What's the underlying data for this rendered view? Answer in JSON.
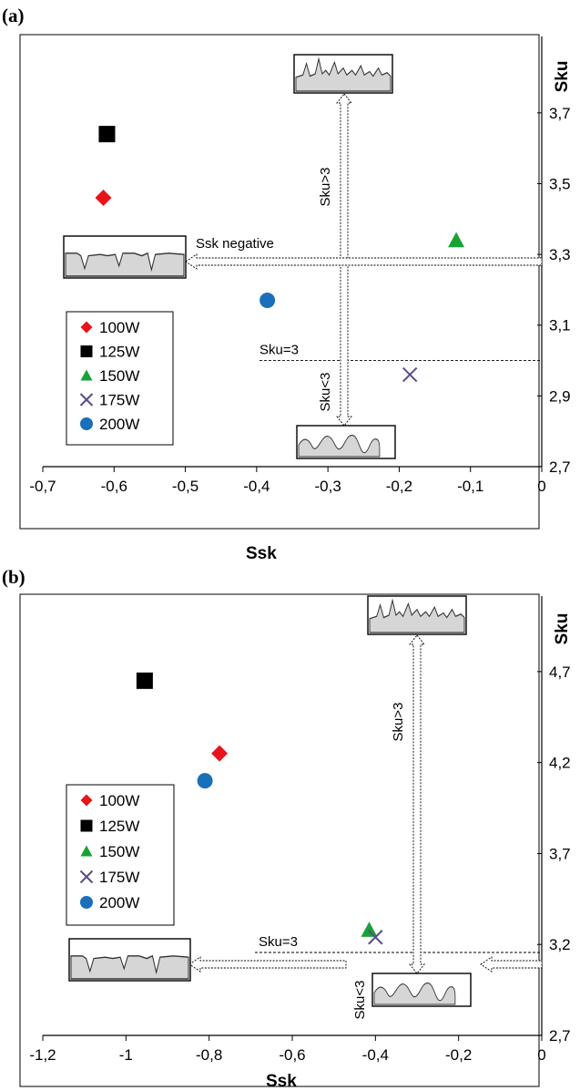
{
  "chart_data": [
    {
      "type": "scatter",
      "panel_label": "(a)",
      "xlabel": "Ssk",
      "ylabel": "Sku",
      "xlim": [
        -0.7,
        0
      ],
      "ylim": [
        2.7,
        3.8
      ],
      "xticks": [
        "-0,7",
        "-0,6",
        "-0,5",
        "-0,4",
        "-0,3",
        "-0,2",
        "-0,1",
        "0"
      ],
      "xtick_values": [
        -0.7,
        -0.6,
        -0.5,
        -0.4,
        -0.3,
        -0.2,
        -0.1,
        0
      ],
      "yticks": [
        "2,7",
        "2,9",
        "3,1",
        "3,3",
        "3,5",
        "3,7"
      ],
      "ytick_values": [
        2.7,
        2.9,
        3.1,
        3.3,
        3.5,
        3.7
      ],
      "y_axis_side": "right",
      "legend_position": "left",
      "series": [
        {
          "name": "100W",
          "marker": "diamond",
          "color": "#e8141b",
          "x": -0.615,
          "y": 3.46
        },
        {
          "name": "125W",
          "marker": "square",
          "color": "#000000",
          "x": -0.61,
          "y": 3.64
        },
        {
          "name": "150W",
          "marker": "triangle",
          "color": "#17a335",
          "x": -0.12,
          "y": 3.34
        },
        {
          "name": "175W",
          "marker": "x",
          "color": "#5b4d86",
          "x": -0.185,
          "y": 2.96
        },
        {
          "name": "200W",
          "marker": "circle",
          "color": "#1a6fba",
          "x": -0.385,
          "y": 3.17
        }
      ],
      "annotations": {
        "sku_gt": "Sku>3",
        "sku_lt": "Sku<3",
        "sku_eq": "Sku=3",
        "ssk_neg": "Ssk negative"
      }
    },
    {
      "type": "scatter",
      "panel_label": "(b)",
      "xlabel": "Ssk",
      "ylabel": "Sku",
      "xlim": [
        -1.2,
        0
      ],
      "ylim": [
        2.7,
        5.0
      ],
      "xticks": [
        "-1,2",
        "-1",
        "-0,8",
        "-0,6",
        "-0,4",
        "-0,2",
        "0"
      ],
      "xtick_values": [
        -1.2,
        -1.0,
        -0.8,
        -0.6,
        -0.4,
        -0.2,
        0
      ],
      "yticks": [
        "2,7",
        "3,2",
        "3,7",
        "4,2",
        "4,7"
      ],
      "ytick_values": [
        2.7,
        3.2,
        3.7,
        4.2,
        4.7
      ],
      "y_axis_side": "right",
      "legend_position": "left",
      "series": [
        {
          "name": "100W",
          "marker": "diamond",
          "color": "#e8141b",
          "x": -0.775,
          "y": 4.25
        },
        {
          "name": "125W",
          "marker": "square",
          "color": "#000000",
          "x": -0.955,
          "y": 4.65
        },
        {
          "name": "150W",
          "marker": "triangle",
          "color": "#17a335",
          "x": -0.415,
          "y": 3.28
        },
        {
          "name": "175W",
          "marker": "x",
          "color": "#5b4d86",
          "x": -0.4,
          "y": 3.24
        },
        {
          "name": "200W",
          "marker": "circle",
          "color": "#1a6fba",
          "x": -0.81,
          "y": 4.1
        }
      ],
      "annotations": {
        "sku_gt": "Sku>3",
        "sku_lt": "Sku<3",
        "sku_eq": "Sku=3"
      }
    }
  ]
}
